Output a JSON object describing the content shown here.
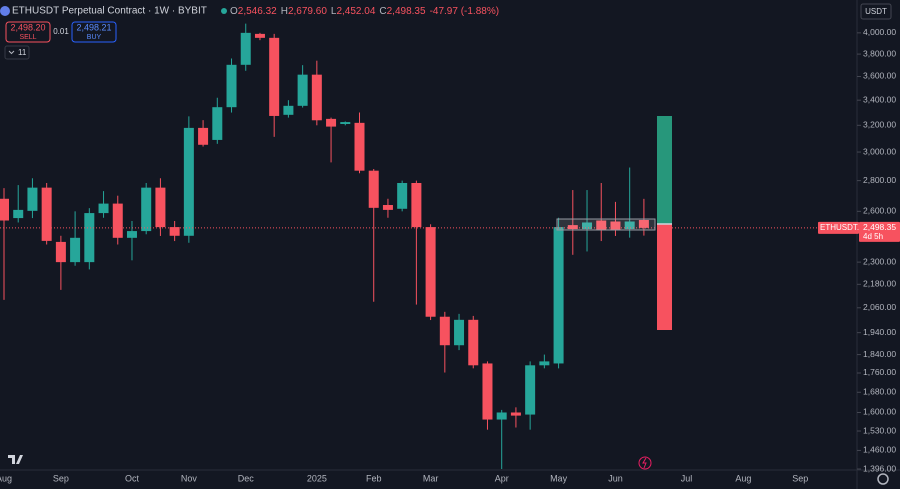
{
  "header": {
    "symbol": "ETHUSDT Perpetual Contract · 1W · BYBIT",
    "ohlc": [
      {
        "key": "O",
        "value": "2,546.32"
      },
      {
        "key": "H",
        "value": "2,679.60"
      },
      {
        "key": "L",
        "value": "2,452.04"
      },
      {
        "key": "C",
        "value": "2,498.35"
      }
    ],
    "change": "-47.97 (-1.88%)",
    "sell_price": "2,498.20",
    "sell": "SELL",
    "quantity": "0.01",
    "buy_price": "2,498.21",
    "buy": "BUY",
    "indicators": "11",
    "currency": "USDT"
  },
  "chart_data": {
    "type": "candlestick",
    "log_scale": true,
    "up_color": "#26a69a",
    "down_color": "#f7525f",
    "categories": [
      "Aug",
      null,
      null,
      null,
      "Sep",
      null,
      null,
      null,
      null,
      "Oct",
      null,
      null,
      null,
      "Nov",
      null,
      null,
      null,
      "Dec",
      null,
      null,
      null,
      null,
      "2025",
      null,
      null,
      null,
      "Feb",
      null,
      null,
      null,
      "Mar",
      null,
      null,
      null,
      null,
      "Apr",
      null,
      null,
      null,
      "May",
      null,
      null,
      null,
      "Jun",
      null,
      null,
      null,
      null,
      "Jul",
      null,
      null,
      null,
      "Aug",
      null,
      null,
      null,
      "Sep"
    ],
    "open": [
      2680,
      2558,
      2603,
      2753,
      2415,
      2300,
      2300,
      2589,
      2649,
      2439,
      2479,
      2753,
      2503,
      2451,
      3180,
      3089,
      3343,
      3703,
      3990,
      3952,
      3282,
      3354,
      3616,
      3250,
      3210,
      3219,
      2868,
      2640,
      2616,
      2784,
      2503,
      2016,
      1882,
      2001,
      1801,
      1573,
      1600,
      1592,
      1793,
      1801,
      2515,
      2491,
      2543,
      2537,
      2491,
      2546.32,
      null,
      null,
      null,
      null,
      null,
      null,
      null,
      null,
      null,
      null,
      null
    ],
    "high": [
      2750,
      2770,
      2816,
      2784,
      2451,
      2600,
      2620,
      2730,
      2700,
      2540,
      2784,
      2816,
      2540,
      3270,
      3240,
      3420,
      3760,
      4090,
      4000,
      3990,
      3400,
      3700,
      3740,
      3260,
      3230,
      3300,
      2880,
      2680,
      2800,
      2800,
      2520,
      2040,
      2030,
      2020,
      1810,
      1610,
      1620,
      1810,
      1840,
      2560,
      2737,
      2737,
      2784,
      2660,
      2890,
      2679.6,
      null,
      null,
      null,
      null,
      null,
      null,
      null,
      null,
      null,
      null,
      null
    ],
    "low": [
      2100,
      2531,
      2558,
      2400,
      2151,
      2280,
      2260,
      2560,
      2400,
      2310,
      2460,
      2450,
      2420,
      2410,
      3040,
      3060,
      3300,
      3650,
      3930,
      3112,
      3260,
      3340,
      3200,
      2926,
      3200,
      2850,
      2090,
      2560,
      2600,
      2076,
      2000,
      1762,
      1860,
      1780,
      1535,
      1396,
      1543,
      1535,
      1780,
      1780,
      2341,
      2360,
      2420,
      2450,
      2440,
      2452.04,
      null,
      null,
      null,
      null,
      null,
      null,
      null,
      null,
      null,
      null,
      null
    ],
    "close": [
      2543,
      2609,
      2753,
      2421,
      2300,
      2439,
      2589,
      2649,
      2439,
      2479,
      2753,
      2503,
      2451,
      3180,
      3053,
      3343,
      3703,
      4000,
      3952,
      3273,
      3354,
      3616,
      3239,
      3190,
      3225,
      2868,
      2622,
      2609,
      2784,
      2503,
      2016,
      1882,
      2001,
      1793,
      1573,
      1600,
      1588,
      1793,
      1810,
      2503,
      2491,
      2531,
      2485,
      2485,
      2537,
      2498.35,
      null,
      null,
      null,
      null,
      null,
      null,
      null,
      null,
      null,
      null,
      null
    ],
    "ylim": [
      1396,
      4330
    ],
    "yticks": [
      {
        "value": 4000,
        "label": "4,000.00"
      },
      {
        "value": 3800,
        "label": "3,800.00"
      },
      {
        "value": 3600,
        "label": "3,600.00"
      },
      {
        "value": 3400,
        "label": "3,400.00"
      },
      {
        "value": 3200,
        "label": "3,200.00"
      },
      {
        "value": 3000,
        "label": "3,000.00"
      },
      {
        "value": 2800,
        "label": "2,800.00"
      },
      {
        "value": 2600,
        "label": "2,600.00"
      },
      {
        "value": 2300,
        "label": "2,300.00"
      },
      {
        "value": 2180,
        "label": "2,180.00"
      },
      {
        "value": 2060,
        "label": "2,060.00"
      },
      {
        "value": 1940,
        "label": "1,940.00"
      },
      {
        "value": 1840,
        "label": "1,840.00"
      },
      {
        "value": 1760,
        "label": "1,760.00"
      },
      {
        "value": 1680,
        "label": "1,680.00"
      },
      {
        "value": 1600,
        "label": "1,600.00"
      },
      {
        "value": 1530,
        "label": "1,530.00"
      },
      {
        "value": 1460,
        "label": "1,460.00"
      },
      {
        "value": 1396,
        "label": "1,396.00"
      }
    ],
    "price_tag": {
      "symbol": "ETHUSDT.P",
      "price": "2,498.35",
      "countdown": "4d 5h"
    }
  }
}
